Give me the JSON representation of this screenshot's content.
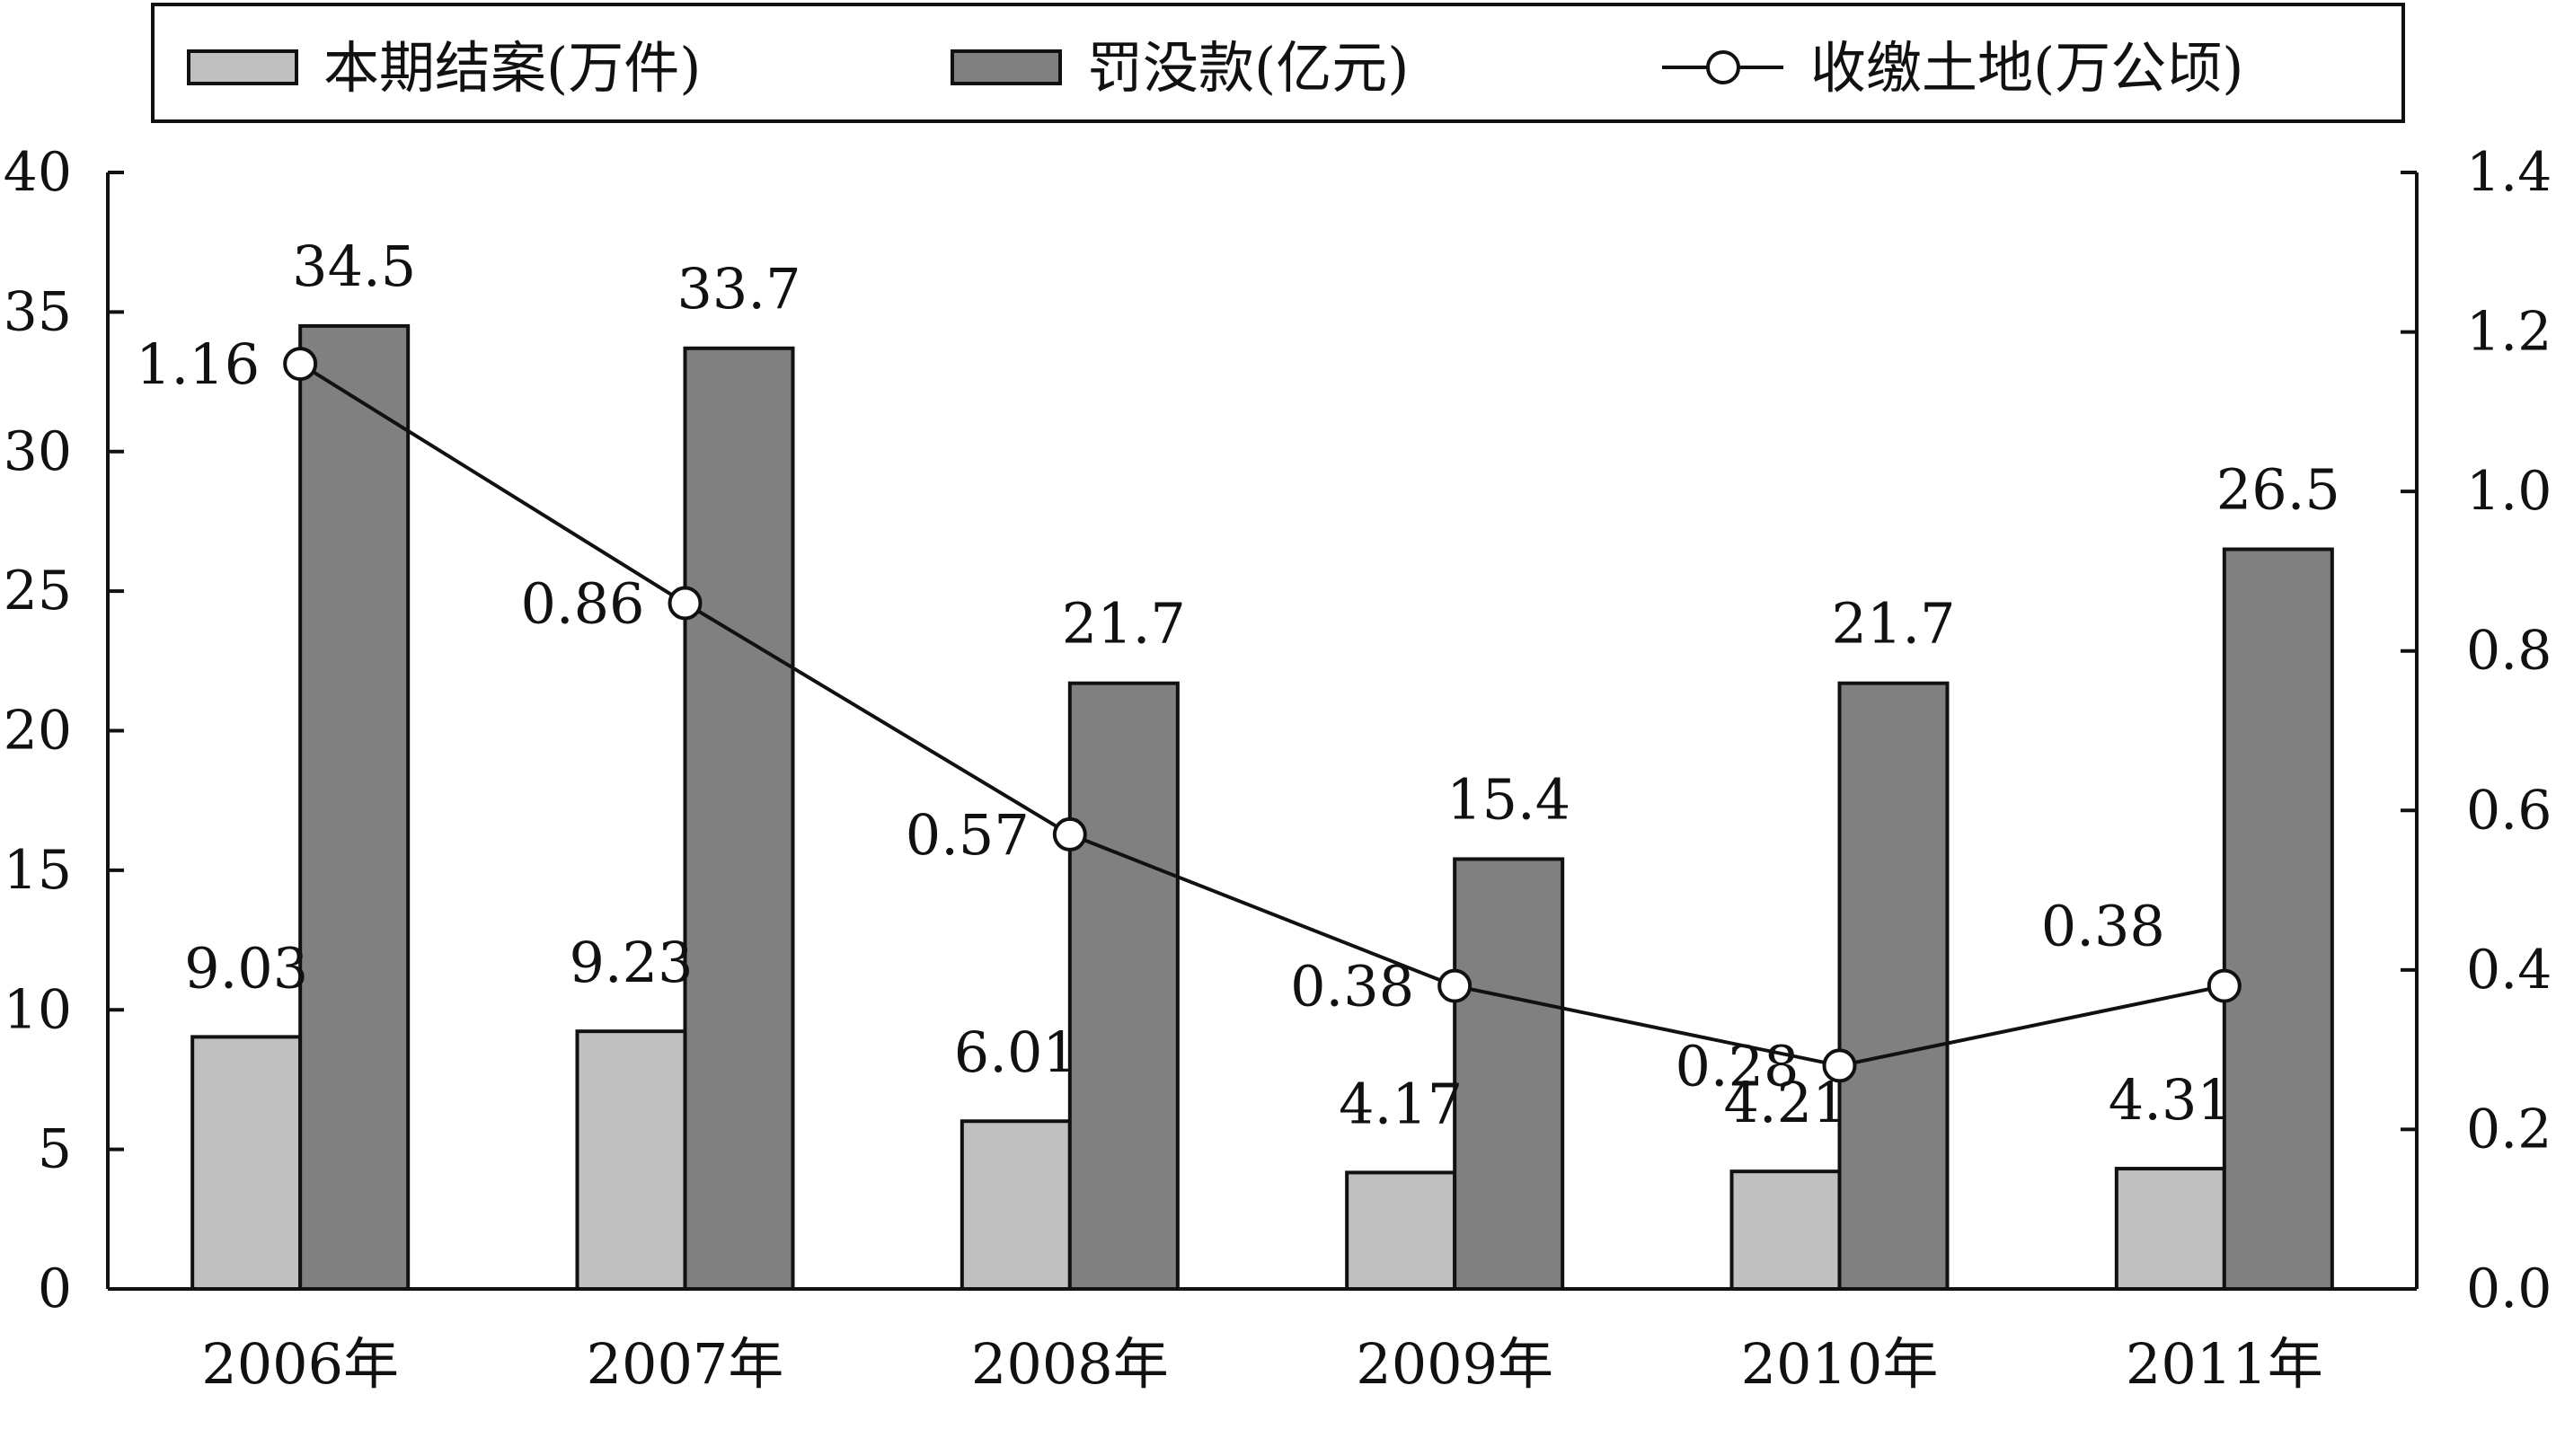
{
  "chart_data": {
    "type": "bar",
    "categories": [
      "2006年",
      "2007年",
      "2008年",
      "2009年",
      "2010年",
      "2011年"
    ],
    "series": [
      {
        "name": "本期结案(万件)",
        "type": "bar",
        "axis": "left",
        "color": "#c0c0c0",
        "values": [
          9.03,
          9.23,
          6.01,
          4.17,
          4.21,
          4.31
        ],
        "labels": [
          "9.03",
          "9.23",
          "6.01",
          "4.17",
          "4.21",
          "4.31"
        ]
      },
      {
        "name": "罚没款(亿元)",
        "type": "bar",
        "axis": "left",
        "color": "#808080",
        "values": [
          34.5,
          33.7,
          21.7,
          15.4,
          21.7,
          26.5
        ],
        "labels": [
          "34.5",
          "33.7",
          "21.7",
          "15.4",
          "21.7",
          "26.5"
        ]
      },
      {
        "name": "收缴土地(万公顷)",
        "type": "line",
        "axis": "right",
        "color": "#111111",
        "marker": "open-circle",
        "values": [
          1.16,
          0.86,
          0.57,
          0.38,
          0.28,
          0.38
        ],
        "labels": [
          "1.16",
          "0.86",
          "0.57",
          "0.38",
          "0.28",
          "0.38"
        ]
      }
    ],
    "y_left": {
      "ylim": [
        0,
        40
      ],
      "ticks": [
        0,
        5,
        10,
        15,
        20,
        25,
        30,
        35,
        40
      ],
      "tick_labels": [
        "0",
        "5",
        "10",
        "15",
        "20",
        "25",
        "30",
        "35",
        "40"
      ]
    },
    "y_right": {
      "ylim": [
        0,
        1.4
      ],
      "ticks": [
        0,
        0.2,
        0.4,
        0.6,
        0.8,
        1.0,
        1.2,
        1.4
      ],
      "tick_labels": [
        "0.0",
        "0.2",
        "0.4",
        "0.6",
        "0.8",
        "1.0",
        "1.2",
        "1.4"
      ]
    },
    "title": "",
    "xlabel": "",
    "ylabel": "",
    "legend": {
      "position": "top",
      "frame": true
    },
    "grid": false
  }
}
